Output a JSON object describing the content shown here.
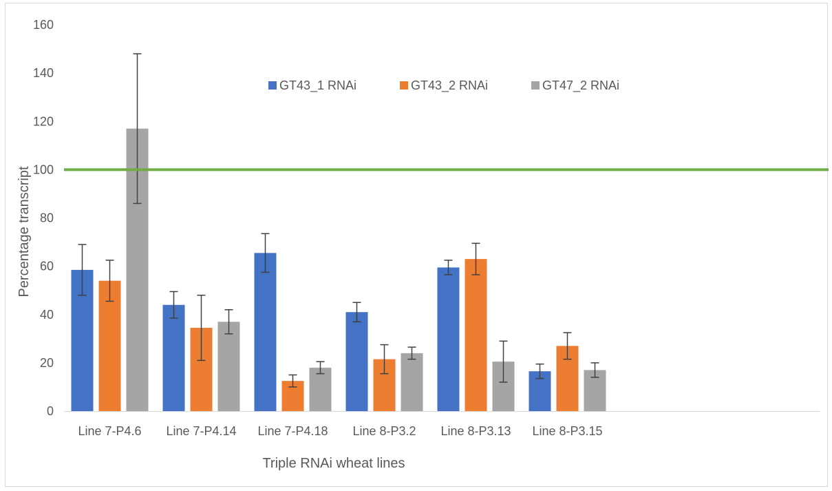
{
  "chart_data": {
    "type": "bar",
    "title": "",
    "xlabel": "Triple RNAi wheat lines",
    "ylabel": "Percentage transcript",
    "ylim": [
      0,
      160
    ],
    "yticks": [
      0,
      20,
      40,
      60,
      80,
      100,
      120,
      140,
      160
    ],
    "grid": false,
    "legend_position": "top",
    "categories": [
      "Line 7-P4.6",
      "Line 7-P4.14",
      "Line 7-P4.18",
      "Line 8-P3.2",
      "Line 8-P3.13",
      "Line 8-P3.15"
    ],
    "series": [
      {
        "name": "GT43_1 RNAi",
        "color": "#4472c4",
        "values": [
          58.5,
          44,
          65.5,
          41,
          59.5,
          16.5
        ],
        "errors": [
          10.5,
          5.5,
          8,
          4,
          3,
          3
        ]
      },
      {
        "name": "GT43_2 RNAi",
        "color": "#ed7d31",
        "values": [
          54,
          34.5,
          12.5,
          21.5,
          63,
          27
        ],
        "errors": [
          8.5,
          13.5,
          2.5,
          6,
          6.5,
          5.5
        ]
      },
      {
        "name": "GT47_2 RNAi",
        "color": "#a5a5a5",
        "values": [
          117,
          37,
          18,
          24,
          20.5,
          17
        ],
        "errors": [
          31,
          5,
          2.5,
          2.5,
          8.5,
          3
        ]
      }
    ],
    "reference_line": {
      "value": 100,
      "color": "#70ad47"
    }
  }
}
